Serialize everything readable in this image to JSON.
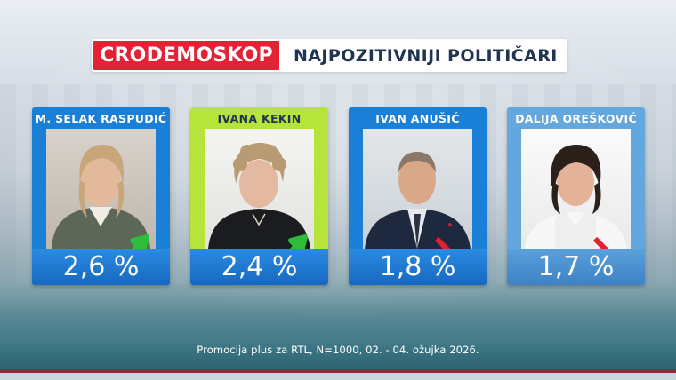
{
  "header": {
    "brand": "CRODEMOSKOP",
    "title": "NAJPOZITIVNIJI POLITIČARI"
  },
  "colors": {
    "brand_red": "#e12335",
    "card_blue": "#1a7fd6",
    "card_green": "#b7e43a",
    "card_light_blue": "#63a7de",
    "arrow_up": "#2dbd3a",
    "arrow_down": "#e2232f"
  },
  "chart_data": {
    "type": "bar",
    "categories": [
      "M. SELAK RASPUDIĆ",
      "IVANA KEKIN",
      "IVAN ANUŠIĆ",
      "DALIJA OREŠKOVIĆ"
    ],
    "values": [
      2.6,
      2.4,
      1.8,
      1.7
    ],
    "value_labels": [
      "2,6 %",
      "2,4 %",
      "1,8 %",
      "1,7 %"
    ],
    "trends": [
      "up",
      "up",
      "down",
      "down"
    ]
  },
  "footnote": "Promocija plus za RTL, N=1000, 02. - 04. ožujka 2026."
}
